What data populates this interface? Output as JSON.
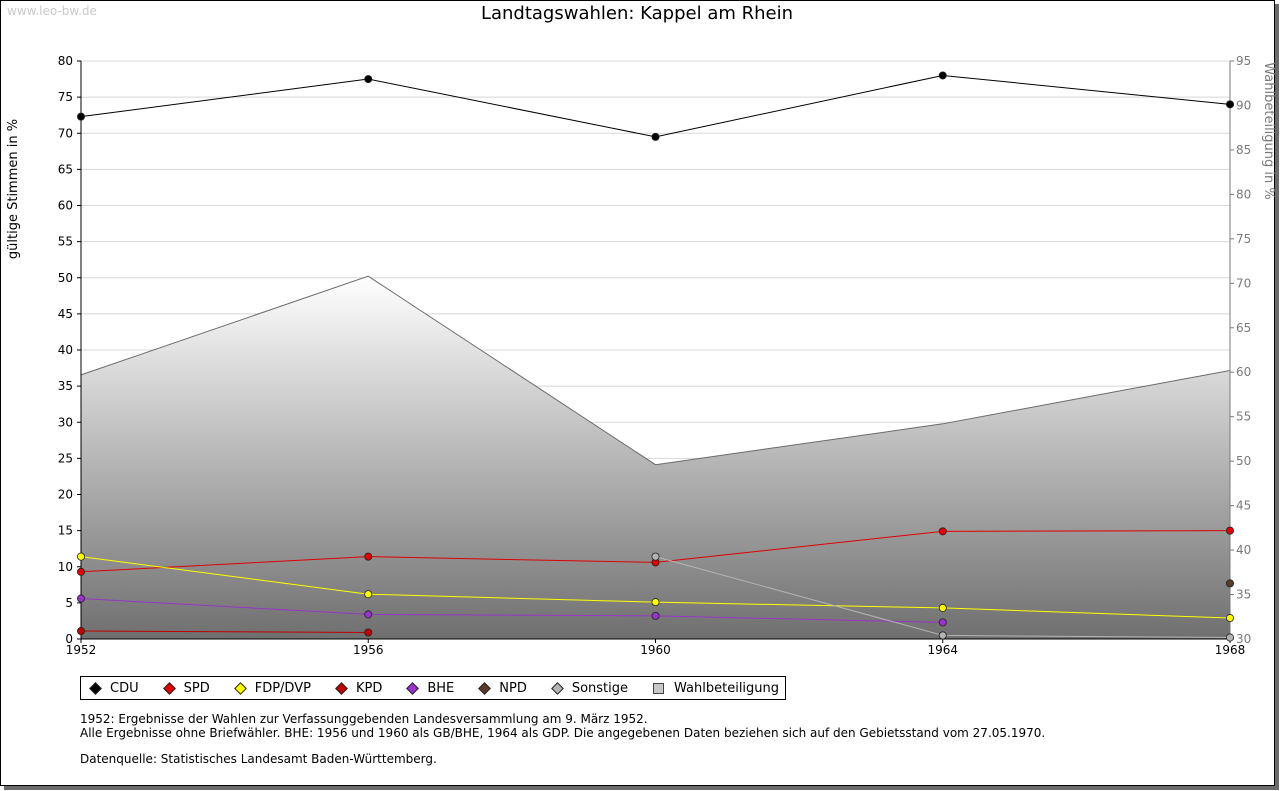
{
  "watermark": "www.leo-bw.de",
  "title": "Landtagswahlen: Kappel am Rhein",
  "notes": {
    "line1": "1952: Ergebnisse der Wahlen zur Verfassunggebenden Landesversammlung am 9. März 1952.",
    "line2": "Alle Ergebnisse ohne Briefwähler. BHE: 1956 und 1960 als GB/BHE, 1964 als GDP. Die angegebenen Daten beziehen sich auf den Gebietsstand vom 27.05.1970.",
    "source": "Datenquelle: Statistisches Landesamt Baden-Württemberg."
  },
  "chart_data": {
    "type": "line",
    "title": "Landtagswahlen: Kappel am Rhein",
    "x": [
      1952,
      1956,
      1960,
      1964,
      1968
    ],
    "xlabel": "",
    "ylabel": "gültige Stimmen in %",
    "ylabel_right": "Wahlbeteiligung in %",
    "ylim": [
      0,
      80
    ],
    "ylim_right": [
      30,
      95
    ],
    "yticks": [
      0,
      5,
      10,
      15,
      20,
      25,
      30,
      35,
      40,
      45,
      50,
      55,
      60,
      65,
      70,
      75,
      80
    ],
    "yticks_right": [
      30,
      35,
      40,
      45,
      50,
      55,
      60,
      65,
      70,
      75,
      80,
      85,
      90,
      95
    ],
    "grid": true,
    "legend_position": "bottom",
    "series": [
      {
        "name": "CDU",
        "color": "#000000",
        "values": [
          72.3,
          77.5,
          69.5,
          78.0,
          74.0
        ]
      },
      {
        "name": "SPD",
        "color": "#e00000",
        "values": [
          9.3,
          11.4,
          10.6,
          14.9,
          15.0
        ]
      },
      {
        "name": "FDP/DVP",
        "color": "#ffff00",
        "values": [
          11.4,
          6.2,
          5.1,
          4.3,
          2.9
        ]
      },
      {
        "name": "KPD",
        "color": "#c00000",
        "values": [
          1.1,
          0.9,
          null,
          null,
          null
        ]
      },
      {
        "name": "BHE",
        "color": "#9933cc",
        "values": [
          5.6,
          3.4,
          3.2,
          2.3,
          null
        ]
      },
      {
        "name": "NPD",
        "color": "#5a3a28",
        "values": [
          null,
          null,
          null,
          null,
          7.7
        ]
      },
      {
        "name": "Sonstige",
        "color": "#b4b4b4",
        "values": [
          null,
          null,
          11.4,
          0.5,
          0.2
        ]
      },
      {
        "name": "Wahlbeteiligung",
        "color": "#c8c8c8",
        "axis": "right",
        "values": [
          59.7,
          70.8,
          49.6,
          54.2,
          60.2
        ]
      }
    ]
  }
}
